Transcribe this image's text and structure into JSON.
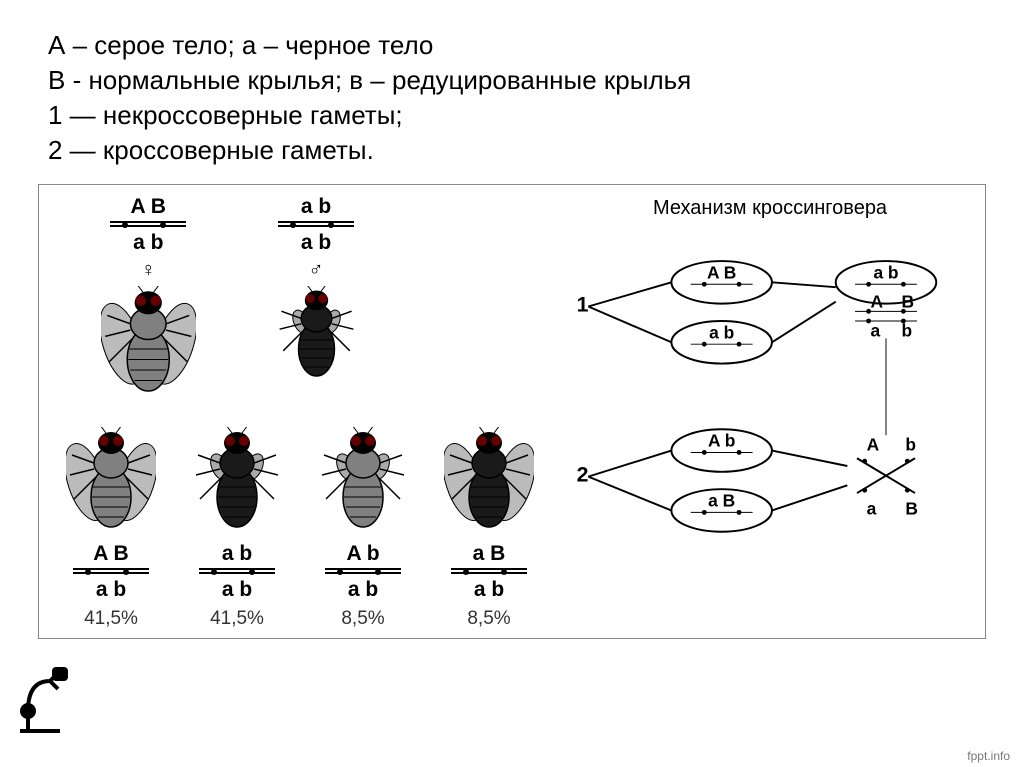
{
  "legend": {
    "l1": "А – серое тело; а – черное тело",
    "l2": "В - нормальные крылья; в – редуцированные крылья",
    "l3": "1 — некроссоверные гаметы;",
    "l4": "2 — кроссоверные гаметы."
  },
  "parents": {
    "female": {
      "top": "A   B",
      "bottom": "a   b",
      "sex": "♀",
      "body_color": "#808080",
      "wings": "normal"
    },
    "male": {
      "top": "a   b",
      "bottom": "a   b",
      "sex": "♂",
      "body_color": "#1a1a1a",
      "wings": "reduced"
    }
  },
  "offspring": [
    {
      "top": "A   B",
      "bottom": "a   b",
      "pct": "41,5%",
      "body_color": "#808080",
      "wings": "normal"
    },
    {
      "top": "a   b",
      "bottom": "a   b",
      "pct": "41,5%",
      "body_color": "#1a1a1a",
      "wings": "reduced"
    },
    {
      "top": "A   b",
      "bottom": "a   b",
      "pct": "8,5%",
      "body_color": "#808080",
      "wings": "reduced"
    },
    {
      "top": "a   B",
      "bottom": "a   b",
      "pct": "8,5%",
      "body_color": "#1a1a1a",
      "wings": "normal"
    }
  ],
  "mechanism": {
    "title": "Механизм кроссинговера",
    "label1": "1",
    "label2": "2",
    "g1a": "A   B",
    "g1b": "a   b",
    "g2a": "A   b",
    "g2b": "a   B",
    "src_top": "a   b",
    "src_bot_l": "A   b",
    "src_bot_r": "a   B",
    "colors": {
      "text": "#000000",
      "oval_stroke": "#000000",
      "line": "#000000"
    },
    "font_size_label": 22,
    "font_size_allele": 18
  },
  "footer": "fppt.info",
  "colors": {
    "bg": "#ffffff",
    "border": "#888888",
    "text": "#000000",
    "pct": "#333333"
  }
}
